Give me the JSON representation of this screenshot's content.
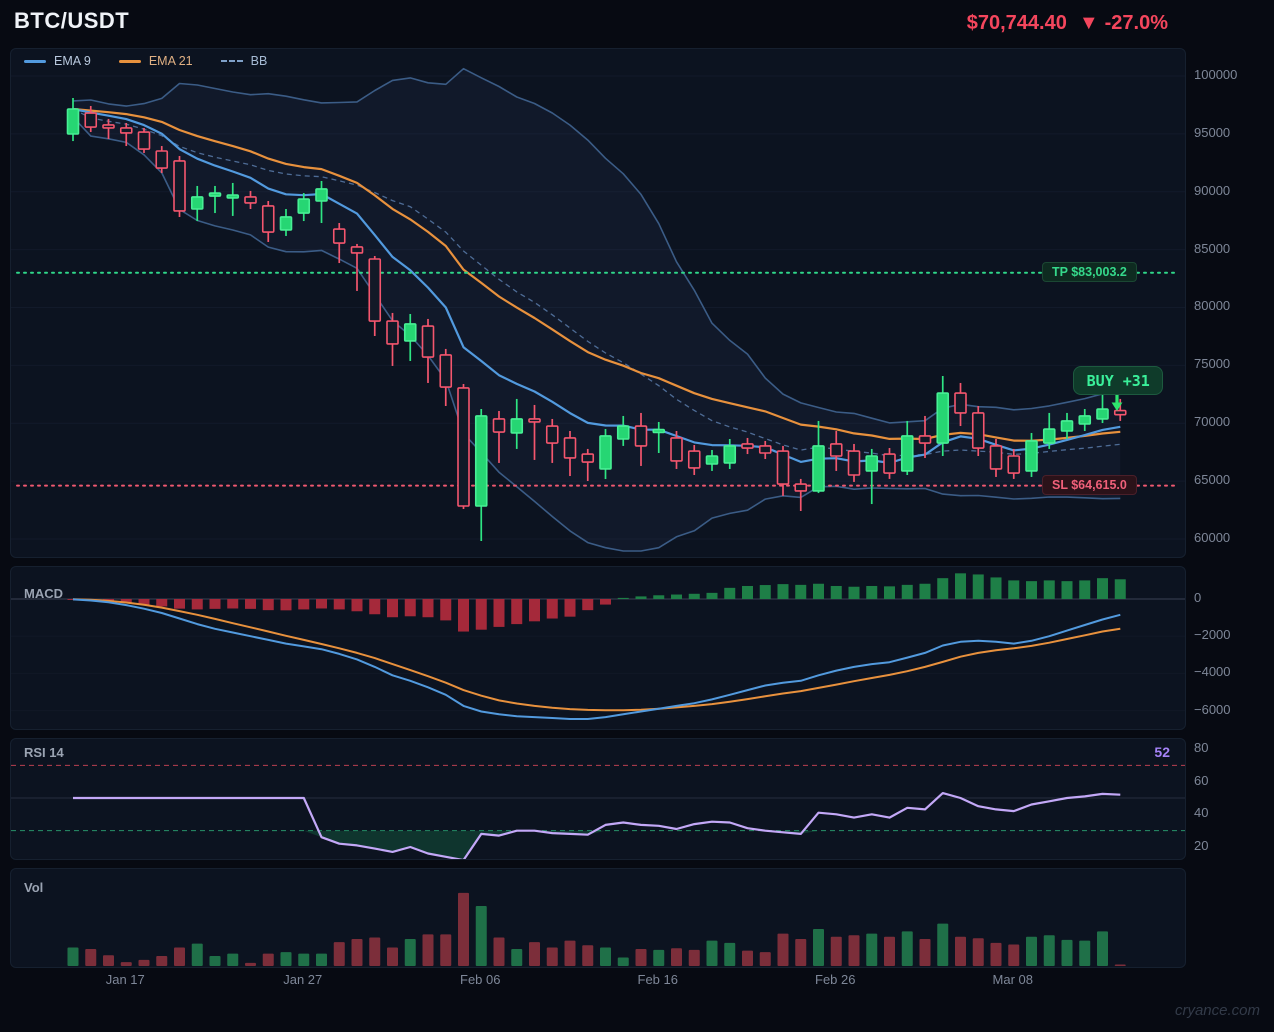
{
  "header": {
    "symbol": "BTC/USDT",
    "price": "$70,744.40",
    "change_arrow": "▼",
    "change": "-27.0%"
  },
  "legend": [
    {
      "label": "EMA 9",
      "color": "#529ade",
      "style": "solid"
    },
    {
      "label": "EMA 21",
      "color": "#e8913d",
      "style": "solid"
    },
    {
      "label": "BB",
      "color": "#7fa0c8",
      "style": "dashed"
    }
  ],
  "overlays": {
    "tp_label": "TP $83,003.2",
    "tp_price": 83003.2,
    "sl_label": "SL $64,615.0",
    "sl_price": 64615.0,
    "buy_label": "BUY",
    "buy_value": "+31",
    "buy_candle_index": 59
  },
  "panels": {
    "macd_label": "MACD",
    "rsi_label": "RSI 14",
    "rsi_value": "52",
    "vol_label": "Vol"
  },
  "axes": {
    "price_ticks": [
      100000,
      95000,
      90000,
      85000,
      80000,
      75000,
      70000,
      65000,
      60000
    ],
    "macd_ticks": [
      "0",
      "−2000",
      "−4000",
      "−6000"
    ],
    "macd_tick_values": [
      0,
      -2000,
      -4000,
      -6000
    ],
    "rsi_ticks": [
      "80",
      "60",
      "40",
      "20"
    ],
    "rsi_tick_values": [
      80,
      60,
      40,
      20
    ],
    "date_ticks": [
      {
        "label": "Jan 17",
        "index": 3
      },
      {
        "label": "Jan 27",
        "index": 13
      },
      {
        "label": "Feb 06",
        "index": 23
      },
      {
        "label": "Feb 16",
        "index": 33
      },
      {
        "label": "Feb 26",
        "index": 43
      },
      {
        "label": "Mar 08",
        "index": 53
      }
    ]
  },
  "watermark": "cryance.com",
  "chart_data": {
    "type": "candlestick+indicators",
    "title": "BTC/USDT",
    "indicators": [
      "EMA 9",
      "EMA 21",
      "BB(20,2)",
      "MACD",
      "RSI 14",
      "Volume"
    ],
    "price_axis": {
      "min": 60000,
      "max": 100000,
      "step": 5000
    },
    "rsi_levels": {
      "overbought": 70,
      "oversold": 30,
      "mid": 50
    },
    "candles_ohlc": [
      [
        94990,
        98100,
        94380,
        97150
      ],
      [
        96800,
        97410,
        95160,
        95590
      ],
      [
        95770,
        96290,
        94560,
        95510
      ],
      [
        95510,
        95940,
        93950,
        95080
      ],
      [
        95160,
        95510,
        93350,
        93690
      ],
      [
        93520,
        93950,
        91620,
        92050
      ],
      [
        92660,
        93090,
        87820,
        88340
      ],
      [
        88510,
        90500,
        87470,
        89550
      ],
      [
        89630,
        90500,
        88160,
        89890
      ],
      [
        89460,
        90760,
        87910,
        89720
      ],
      [
        89550,
        90070,
        88510,
        89030
      ],
      [
        88770,
        89200,
        85660,
        86520
      ],
      [
        86700,
        88510,
        86180,
        87820
      ],
      [
        88160,
        89890,
        87470,
        89370
      ],
      [
        89200,
        90930,
        87300,
        90240
      ],
      [
        86780,
        87300,
        83840,
        85570
      ],
      [
        85230,
        85490,
        81430,
        84710
      ],
      [
        84190,
        84450,
        77540,
        78830
      ],
      [
        78830,
        79530,
        74950,
        76850
      ],
      [
        77110,
        79440,
        75380,
        78580
      ],
      [
        78400,
        79010,
        73480,
        75720
      ],
      [
        75900,
        76420,
        71490,
        73130
      ],
      [
        73050,
        73390,
        62590,
        62850
      ],
      [
        62850,
        71230,
        59830,
        70630
      ],
      [
        70370,
        71060,
        66570,
        69240
      ],
      [
        69160,
        72100,
        67780,
        70370
      ],
      [
        70370,
        71580,
        66830,
        70110
      ],
      [
        69760,
        70370,
        66570,
        68290
      ],
      [
        68730,
        69330,
        65440,
        67000
      ],
      [
        67340,
        67780,
        65010,
        66650
      ],
      [
        66050,
        69500,
        65180,
        68900
      ],
      [
        68640,
        70630,
        68040,
        69760
      ],
      [
        69760,
        70890,
        66310,
        68040
      ],
      [
        69240,
        70110,
        67430,
        69420
      ],
      [
        68730,
        69330,
        66050,
        66740
      ],
      [
        67600,
        68120,
        65530,
        66140
      ],
      [
        66480,
        67690,
        65880,
        67170
      ],
      [
        66570,
        68640,
        66050,
        68040
      ],
      [
        68210,
        68730,
        67340,
        67860
      ],
      [
        68040,
        68470,
        66910,
        67430
      ],
      [
        67600,
        68040,
        63720,
        64750
      ],
      [
        64750,
        65190,
        62420,
        64150
      ],
      [
        64150,
        70200,
        63970,
        68040
      ],
      [
        68210,
        69330,
        65880,
        67170
      ],
      [
        67600,
        68210,
        64930,
        65530
      ],
      [
        65880,
        67780,
        63020,
        67170
      ],
      [
        67340,
        67860,
        65190,
        65700
      ],
      [
        65880,
        70200,
        65530,
        68900
      ],
      [
        68900,
        70630,
        67000,
        68290
      ],
      [
        68290,
        74080,
        67170,
        72610
      ],
      [
        72610,
        73480,
        69760,
        70890
      ],
      [
        70890,
        71490,
        67170,
        67860
      ],
      [
        68040,
        68640,
        65360,
        66050
      ],
      [
        67170,
        67780,
        65190,
        65700
      ],
      [
        65880,
        69160,
        65360,
        68470
      ],
      [
        68290,
        70890,
        67780,
        69500
      ],
      [
        69330,
        70890,
        68640,
        70200
      ],
      [
        69940,
        71230,
        69330,
        70630
      ],
      [
        70370,
        74080,
        70020,
        71230
      ],
      [
        71100,
        72100,
        70200,
        70744
      ]
    ],
    "volume": [
      24,
      22,
      14,
      5,
      8,
      13,
      24,
      29,
      13,
      16,
      4,
      16,
      18,
      16,
      16,
      31,
      35,
      37,
      24,
      35,
      41,
      41,
      95,
      78,
      37,
      22,
      31,
      24,
      33,
      27,
      24,
      11,
      22,
      21,
      23,
      21,
      33,
      30,
      20,
      18,
      42,
      35,
      48,
      38,
      40,
      42,
      38,
      45,
      35,
      55,
      38,
      36,
      30,
      28,
      38,
      40,
      34,
      33,
      45,
      2
    ],
    "macd": {
      "hist": [
        -10,
        -40,
        -120,
        -200,
        -300,
        -400,
        -520,
        -560,
        -530,
        -510,
        -530,
        -600,
        -610,
        -560,
        -510,
        -560,
        -660,
        -820,
        -980,
        -930,
        -980,
        -1150,
        -1750,
        -1650,
        -1500,
        -1350,
        -1200,
        -1050,
        -950,
        -600,
        -300,
        60,
        140,
        200,
        240,
        280,
        330,
        600,
        700,
        750,
        800,
        760,
        820,
        700,
        660,
        700,
        680,
        760,
        820,
        1120,
        1380,
        1320,
        1160,
        1000,
        960,
        1000,
        960,
        1000,
        1120,
        1060
      ],
      "macd": [
        -20,
        -80,
        -180,
        -330,
        -520,
        -750,
        -1050,
        -1350,
        -1600,
        -1800,
        -2000,
        -2200,
        -2400,
        -2550,
        -2700,
        -2950,
        -3250,
        -3650,
        -4100,
        -4400,
        -4750,
        -5150,
        -5750,
        -6050,
        -6200,
        -6300,
        -6350,
        -6400,
        -6450,
        -6450,
        -6350,
        -6200,
        -6050,
        -5900,
        -5750,
        -5600,
        -5400,
        -5150,
        -4900,
        -4650,
        -4500,
        -4400,
        -4100,
        -3850,
        -3650,
        -3500,
        -3400,
        -3150,
        -2900,
        -2500,
        -2300,
        -2250,
        -2300,
        -2400,
        -2250,
        -2000,
        -1700,
        -1400,
        -1100,
        -850
      ],
      "signal": [
        -10,
        -40,
        -100,
        -190,
        -310,
        -460,
        -650,
        -850,
        -1070,
        -1300,
        -1520,
        -1750,
        -1980,
        -2200,
        -2420,
        -2650,
        -2900,
        -3180,
        -3500,
        -3820,
        -4150,
        -4500,
        -4900,
        -5200,
        -5450,
        -5620,
        -5750,
        -5850,
        -5920,
        -5960,
        -5980,
        -5980,
        -5950,
        -5900,
        -5830,
        -5750,
        -5650,
        -5520,
        -5380,
        -5230,
        -5080,
        -4950,
        -4780,
        -4600,
        -4420,
        -4250,
        -4080,
        -3880,
        -3650,
        -3380,
        -3100,
        -2900,
        -2750,
        -2650,
        -2520,
        -2350,
        -2150,
        -1950,
        -1750,
        -1600
      ]
    },
    "rsi": [
      50,
      50,
      50,
      50,
      50,
      50,
      50,
      50,
      50,
      50,
      50,
      50,
      50,
      50,
      26,
      22,
      21,
      19,
      17,
      20,
      16,
      14,
      12,
      28,
      27,
      30,
      30,
      28.5,
      28,
      27.5,
      33.5,
      35,
      33.5,
      33,
      31,
      34,
      35.5,
      35,
      31.5,
      30,
      29,
      28,
      41,
      40,
      38,
      40,
      38,
      44,
      43,
      53,
      50,
      45,
      43,
      42,
      46,
      48,
      50,
      51,
      52.5,
      52
    ]
  }
}
